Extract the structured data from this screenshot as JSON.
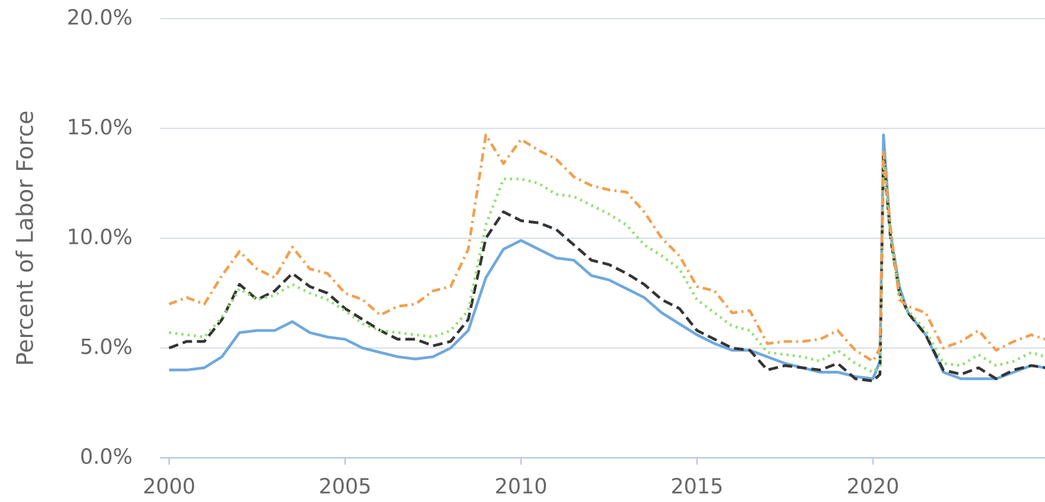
{
  "chart_data": {
    "type": "line",
    "y_label": "Percent of Labor Force",
    "x": [
      2000,
      2000.5,
      2001,
      2001.5,
      2002,
      2002.5,
      2003,
      2003.5,
      2004,
      2004.5,
      2005,
      2005.5,
      2006,
      2006.5,
      2007,
      2007.5,
      2008,
      2008.5,
      2009,
      2009.5,
      2010,
      2010.5,
      2011,
      2011.5,
      2012,
      2012.5,
      2013,
      2013.5,
      2014,
      2014.5,
      2015,
      2015.5,
      2016,
      2016.5,
      2017,
      2017.5,
      2018,
      2018.5,
      2019,
      2019.5,
      2020,
      2020.2,
      2020.3,
      2020.5,
      2020.75,
      2021,
      2021.5,
      2022,
      2022.5,
      2023,
      2023.5,
      2024,
      2024.5,
      2024.9
    ],
    "series": [
      {
        "color": "#6fa8dc",
        "style": "solid",
        "values": [
          4.0,
          4.0,
          4.1,
          4.6,
          5.7,
          5.8,
          5.8,
          6.2,
          5.7,
          5.5,
          5.4,
          5.0,
          4.8,
          4.6,
          4.5,
          4.6,
          5.0,
          5.8,
          8.2,
          9.5,
          9.9,
          9.5,
          9.1,
          9.0,
          8.3,
          8.1,
          7.7,
          7.3,
          6.6,
          6.1,
          5.6,
          5.2,
          4.9,
          4.9,
          4.6,
          4.3,
          4.1,
          3.9,
          3.9,
          3.7,
          3.6,
          4.4,
          14.7,
          10.2,
          7.8,
          6.6,
          5.6,
          3.9,
          3.6,
          3.6,
          3.6,
          3.9,
          4.2,
          4.1
        ]
      },
      {
        "color": "#333333",
        "style": "dashed",
        "values": [
          5.0,
          5.3,
          5.3,
          6.3,
          7.9,
          7.2,
          7.6,
          8.4,
          7.8,
          7.5,
          6.8,
          6.3,
          5.8,
          5.4,
          5.4,
          5.1,
          5.3,
          6.3,
          10.0,
          11.2,
          10.8,
          10.7,
          10.4,
          9.7,
          9.0,
          8.8,
          8.4,
          7.9,
          7.2,
          6.8,
          5.8,
          5.4,
          5.0,
          4.9,
          4.0,
          4.2,
          4.1,
          4.0,
          4.3,
          3.6,
          3.5,
          3.8,
          13.9,
          10.0,
          7.5,
          6.6,
          5.6,
          4.0,
          3.8,
          4.1,
          3.6,
          4.0,
          4.2,
          4.1
        ]
      },
      {
        "color": "#90e070",
        "style": "dotted",
        "values": [
          5.7,
          5.6,
          5.5,
          6.4,
          7.7,
          7.2,
          7.4,
          7.9,
          7.5,
          7.2,
          6.7,
          6.1,
          5.8,
          5.7,
          5.6,
          5.5,
          5.8,
          6.7,
          10.6,
          12.7,
          12.7,
          12.5,
          12.0,
          11.9,
          11.5,
          11.1,
          10.6,
          9.7,
          9.2,
          8.6,
          7.2,
          6.6,
          6.0,
          5.8,
          4.8,
          4.7,
          4.6,
          4.4,
          4.9,
          4.3,
          3.9,
          4.2,
          13.5,
          10.0,
          7.5,
          6.7,
          5.8,
          4.3,
          4.2,
          4.7,
          4.2,
          4.4,
          4.8,
          4.6
        ]
      },
      {
        "color": "#f0a050",
        "style": "dashdot",
        "values": [
          7.0,
          7.3,
          7.0,
          8.3,
          9.4,
          8.6,
          8.2,
          9.6,
          8.6,
          8.4,
          7.5,
          7.2,
          6.5,
          6.9,
          7.0,
          7.6,
          7.8,
          9.5,
          14.7,
          13.4,
          14.5,
          14.0,
          13.6,
          12.8,
          12.4,
          12.2,
          12.1,
          11.2,
          10.0,
          9.2,
          7.8,
          7.6,
          6.6,
          6.7,
          5.2,
          5.3,
          5.3,
          5.4,
          5.8,
          4.9,
          4.4,
          5.0,
          14.0,
          10.5,
          7.2,
          6.9,
          6.6,
          5.0,
          5.3,
          5.8,
          4.9,
          5.3,
          5.6,
          5.4
        ]
      }
    ],
    "xlim": [
      2000,
      2024.85
    ],
    "xticks": [
      2000,
      2005,
      2010,
      2015,
      2020
    ],
    "ylim": [
      0,
      20
    ],
    "yticks": [
      {
        "value": 0,
        "label": "0.0%"
      },
      {
        "value": 5,
        "label": "5.0%"
      },
      {
        "value": 10,
        "label": "10.0%"
      },
      {
        "value": 15,
        "label": "15.0%"
      },
      {
        "value": 20,
        "label": "20.0%"
      }
    ],
    "grid": true
  }
}
